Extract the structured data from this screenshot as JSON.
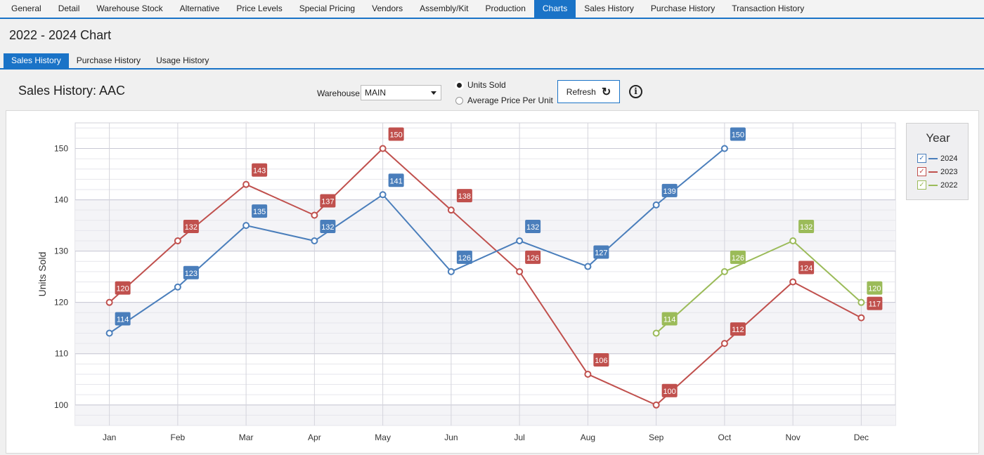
{
  "top_tabs": [
    "General",
    "Detail",
    "Warehouse Stock",
    "Alternative",
    "Price Levels",
    "Special Pricing",
    "Vendors",
    "Assembly/Kit",
    "Production",
    "Charts",
    "Sales History",
    "Purchase History",
    "Transaction History"
  ],
  "active_top_tab": "Charts",
  "page_title": "2022 - 2024 Chart",
  "sub_tabs": [
    "Sales History",
    "Purchase History",
    "Usage History"
  ],
  "active_sub_tab": "Sales History",
  "panel": {
    "title": "Sales History: AAC",
    "warehouse_label": "Warehouse:",
    "warehouse_value": "MAIN",
    "radio_units": "Units Sold",
    "radio_price": "Average Price Per Unit",
    "selected_radio": "Units Sold",
    "refresh_label": "Refresh",
    "info_glyph": "i"
  },
  "legend": {
    "title": "Year",
    "items": [
      {
        "label": "2024",
        "color": "#4a7ebb"
      },
      {
        "label": "2023",
        "color": "#c0504d"
      },
      {
        "label": "2022",
        "color": "#9bbb59"
      }
    ]
  },
  "chart_data": {
    "type": "line",
    "categories": [
      "Jan",
      "Feb",
      "Mar",
      "Apr",
      "May",
      "Jun",
      "Jul",
      "Aug",
      "Sep",
      "Oct",
      "Nov",
      "Dec"
    ],
    "ylabel": "Units Sold",
    "ylim": [
      96,
      155
    ],
    "yticks": [
      100,
      110,
      120,
      130,
      140,
      150
    ],
    "series": [
      {
        "name": "2024",
        "color": "#4a7ebb",
        "values": [
          114,
          123,
          135,
          132,
          141,
          126,
          132,
          127,
          139,
          150,
          null,
          null
        ]
      },
      {
        "name": "2023",
        "color": "#c0504d",
        "values": [
          120,
          132,
          143,
          137,
          150,
          138,
          126,
          106,
          100,
          112,
          124,
          117
        ]
      },
      {
        "name": "2022",
        "color": "#9bbb59",
        "values": [
          null,
          null,
          null,
          null,
          null,
          null,
          null,
          null,
          114,
          126,
          132,
          120
        ]
      }
    ]
  }
}
